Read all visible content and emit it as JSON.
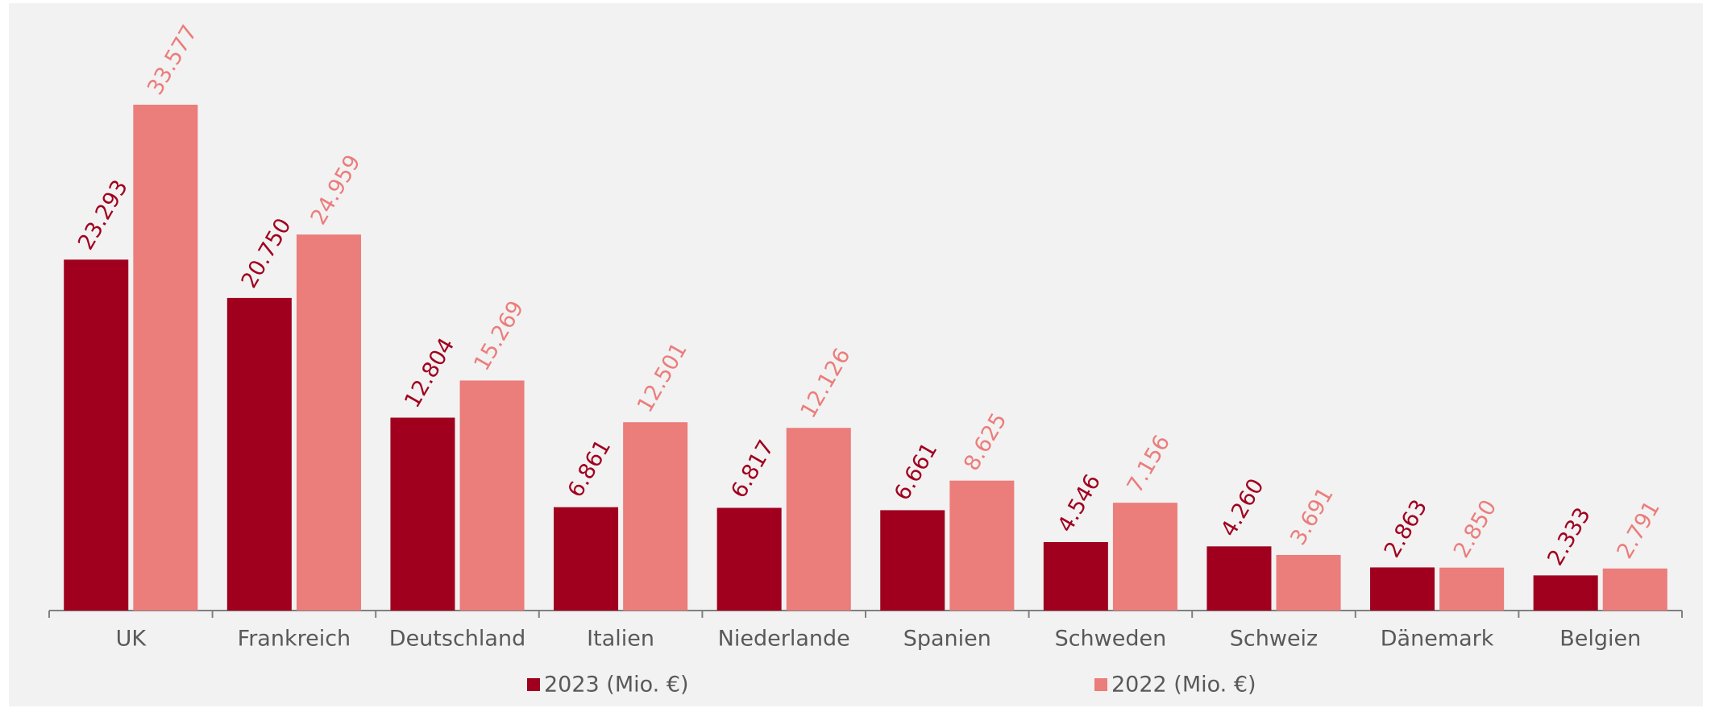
{
  "chart_data": {
    "type": "bar",
    "categories": [
      "UK",
      "Frankreich",
      "Deutschland",
      "Italien",
      "Niederlande",
      "Spanien",
      "Schweden",
      "Schweiz",
      "Dänemark",
      "Belgien"
    ],
    "series": [
      {
        "name": "2023 (Mio. €)",
        "color": "#a0001e",
        "values": [
          23293,
          20750,
          12804,
          6861,
          6817,
          6661,
          4546,
          4260,
          2863,
          2333
        ],
        "value_labels": [
          "23.293",
          "20.750",
          "12.804",
          "6.861",
          "6.817",
          "6.661",
          "4.546",
          "4.260",
          "2.863",
          "2.333"
        ]
      },
      {
        "name": "2022 (Mio. €)",
        "color": "#eb7d7b",
        "values": [
          33577,
          24959,
          15269,
          12501,
          12126,
          8625,
          7156,
          3691,
          2850,
          2791
        ],
        "value_labels": [
          "33.577",
          "24.959",
          "15.269",
          "12.501",
          "12.126",
          "8.625",
          "7.156",
          "3.691",
          "2.850",
          "2.791"
        ]
      }
    ],
    "legend": "bottom"
  }
}
